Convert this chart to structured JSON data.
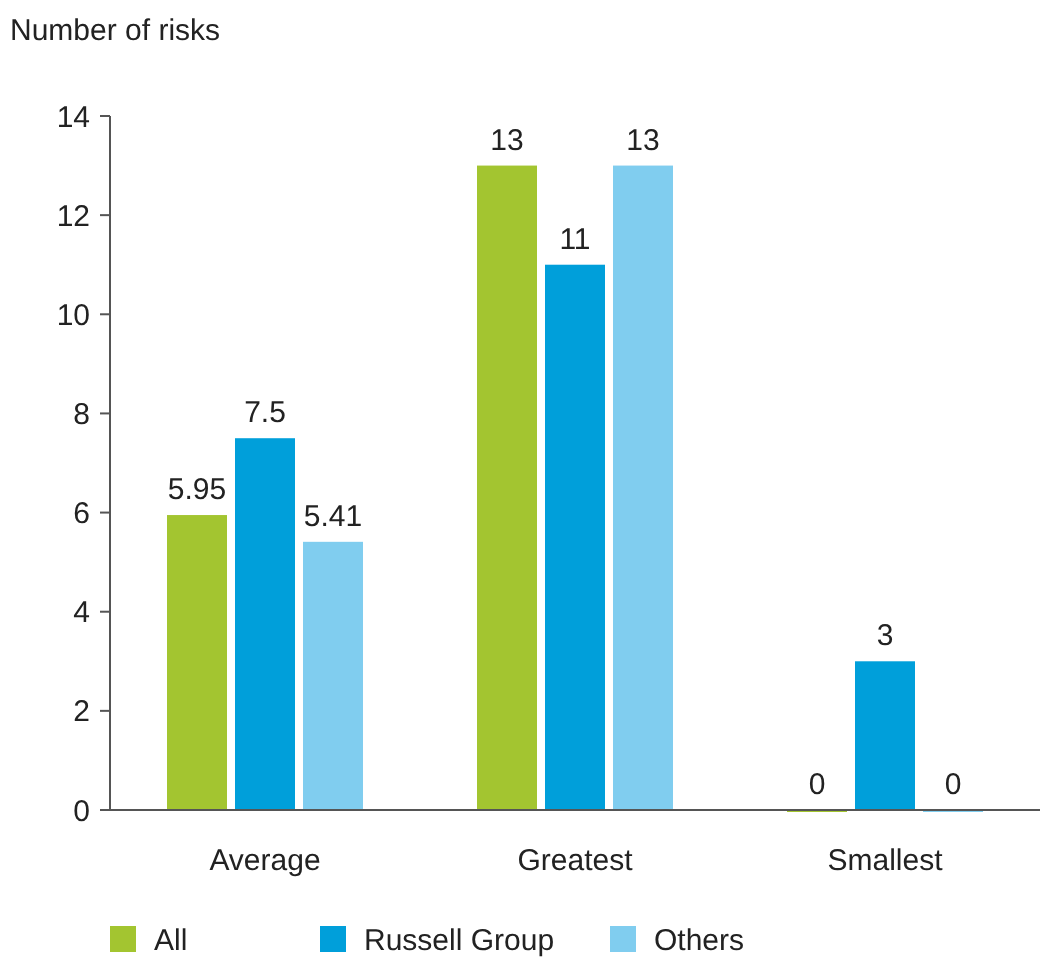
{
  "chart_data": {
    "type": "bar",
    "ylabel": "Number of risks",
    "categories": [
      "Average",
      "Greatest",
      "Smallest"
    ],
    "series": [
      {
        "name": "All",
        "color": "#a3c530",
        "values": [
          5.95,
          13,
          0
        ]
      },
      {
        "name": "Russell Group",
        "color": "#009fda",
        "values": [
          7.5,
          11,
          3
        ]
      },
      {
        "name": "Others",
        "color": "#80cdef",
        "values": [
          5.41,
          13,
          0
        ]
      }
    ],
    "ylim": [
      0,
      14
    ],
    "yticks": [
      0,
      2,
      4,
      6,
      8,
      10,
      12,
      14
    ],
    "data_labels": true,
    "legend": "bottom",
    "grid": false
  }
}
